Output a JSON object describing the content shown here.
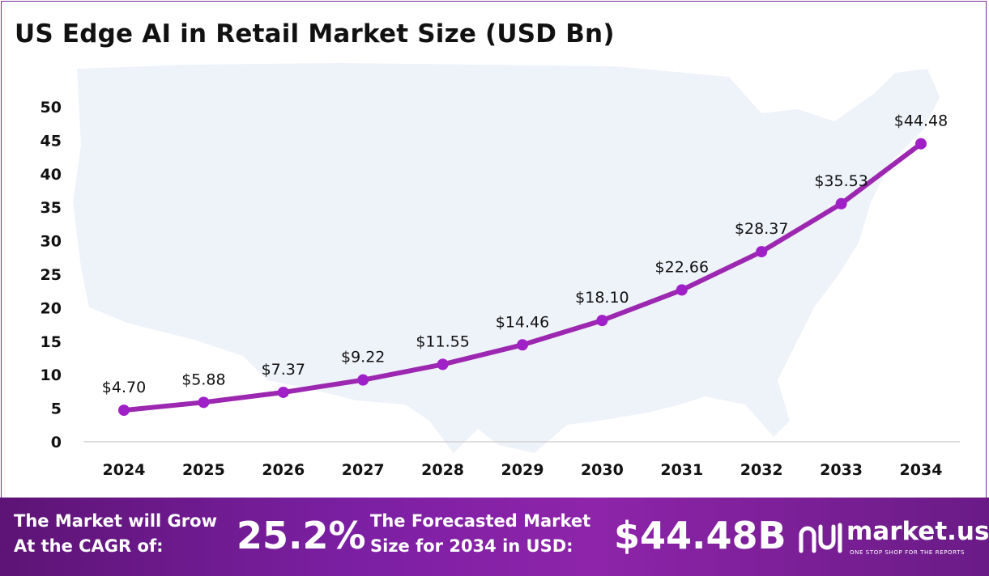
{
  "chart_data": {
    "type": "line",
    "title": "US Edge AI in Retail Market Size (USD Bn)",
    "categories": [
      "2024",
      "2025",
      "2026",
      "2027",
      "2028",
      "2029",
      "2030",
      "2031",
      "2032",
      "2033",
      "2034"
    ],
    "series": [
      {
        "values": [
          4.7,
          5.88,
          7.37,
          9.22,
          11.55,
          14.46,
          18.1,
          22.66,
          28.37,
          35.53,
          44.48
        ]
      }
    ],
    "data_labels": [
      "$4.70",
      "$5.88",
      "$7.37",
      "$9.22",
      "$11.55",
      "$14.46",
      "$18.10",
      "$22.66",
      "$28.37",
      "$35.53",
      "$44.48"
    ],
    "ylim": [
      0,
      50
    ],
    "yticks": [
      0,
      5,
      10,
      15,
      20,
      25,
      30,
      35,
      40,
      45,
      50
    ],
    "grid": false,
    "legend": "none",
    "line_color": "#9c27b0",
    "marker_color": "#a020c8",
    "background_map": "United States silhouette"
  },
  "footer": {
    "cagr_text_line1": "The Market will Grow",
    "cagr_text_line2": "At the CAGR of:",
    "cagr_value": "25.2%",
    "forecast_text_line1": "The Forecasted Market",
    "forecast_text_line2": "Size for 2034 in USD:",
    "forecast_value": "$44.48B",
    "brand_name": "market.us",
    "brand_tagline": "ONE STOP SHOP FOR THE REPORTS"
  },
  "colors": {
    "frame_border": "#7b2d9c",
    "footer_bg": "#7b1fa2",
    "map_fill": "#eef2f9"
  }
}
